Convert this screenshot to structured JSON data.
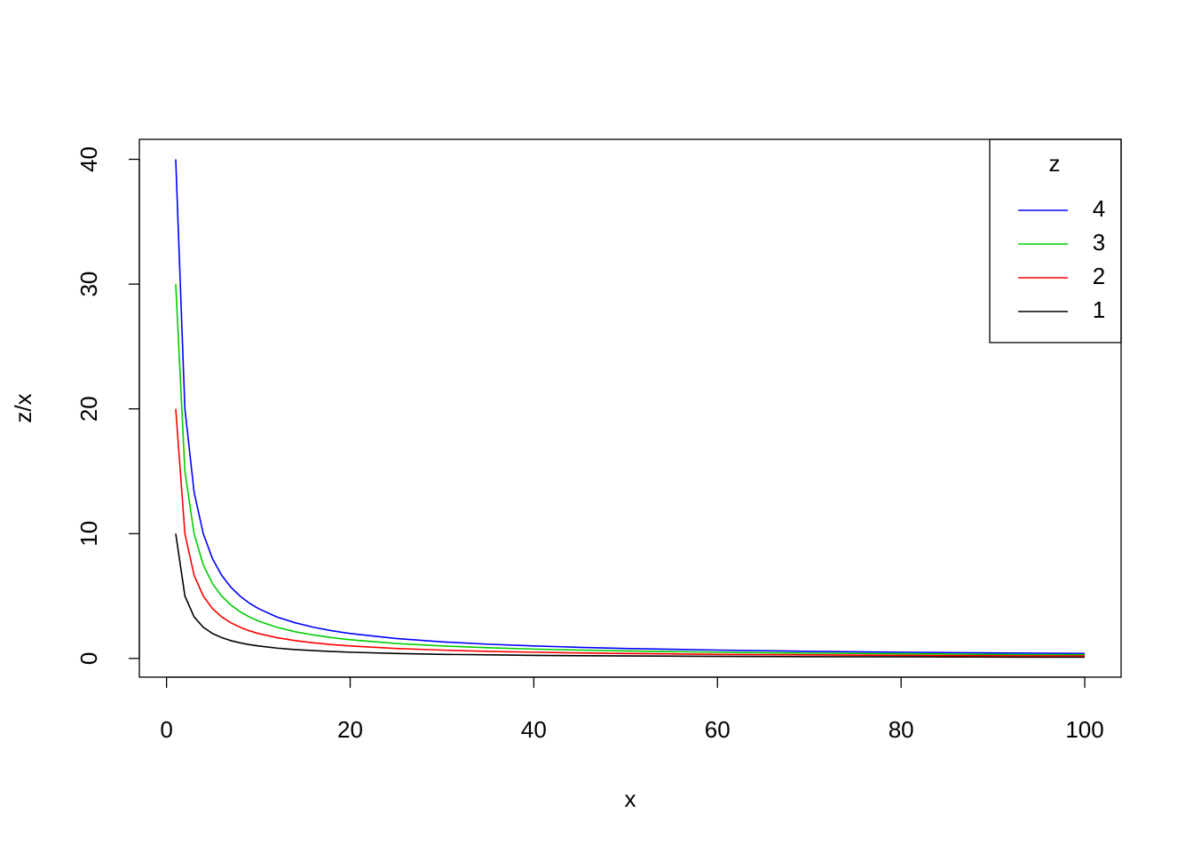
{
  "chart_data": {
    "type": "line",
    "x_label": "x",
    "y_label": "z/x",
    "x": [
      1,
      2,
      3,
      4,
      5,
      6,
      7,
      8,
      9,
      10,
      12,
      14,
      16,
      18,
      20,
      25,
      30,
      35,
      40,
      45,
      50,
      60,
      70,
      80,
      90,
      100
    ],
    "series": [
      {
        "name": "4",
        "color": "#0000ff",
        "values": [
          40,
          20,
          13.33,
          10,
          8,
          6.67,
          5.71,
          5,
          4.44,
          4,
          3.33,
          2.86,
          2.5,
          2.22,
          2,
          1.6,
          1.33,
          1.14,
          1,
          0.89,
          0.8,
          0.67,
          0.57,
          0.5,
          0.44,
          0.4
        ]
      },
      {
        "name": "3",
        "color": "#00cd00",
        "values": [
          30,
          15,
          10,
          7.5,
          6,
          5,
          4.29,
          3.75,
          3.33,
          3,
          2.5,
          2.14,
          1.88,
          1.67,
          1.5,
          1.2,
          1,
          0.86,
          0.75,
          0.67,
          0.6,
          0.5,
          0.43,
          0.38,
          0.33,
          0.3
        ]
      },
      {
        "name": "2",
        "color": "#ff0000",
        "values": [
          20,
          10,
          6.67,
          5,
          4,
          3.33,
          2.86,
          2.5,
          2.22,
          2,
          1.67,
          1.43,
          1.25,
          1.11,
          1,
          0.8,
          0.67,
          0.57,
          0.5,
          0.44,
          0.4,
          0.33,
          0.29,
          0.25,
          0.22,
          0.2
        ]
      },
      {
        "name": "1",
        "color": "#000000",
        "values": [
          10,
          5,
          3.33,
          2.5,
          2,
          1.67,
          1.43,
          1.25,
          1.11,
          1,
          0.83,
          0.71,
          0.63,
          0.56,
          0.5,
          0.4,
          0.33,
          0.29,
          0.25,
          0.22,
          0.2,
          0.17,
          0.14,
          0.13,
          0.11,
          0.1
        ]
      }
    ],
    "legend_title": "z",
    "legend_position": "top-right",
    "xlim": [
      -2.96,
      103.96
    ],
    "xticks": [
      0,
      20,
      40,
      60,
      80,
      100
    ],
    "ylim": [
      -1.5,
      41.6
    ],
    "yticks": [
      0,
      10,
      20,
      30,
      40
    ]
  }
}
